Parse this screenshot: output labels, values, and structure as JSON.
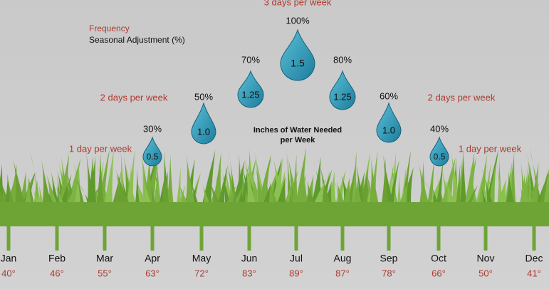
{
  "legend": {
    "frequency": "Frequency",
    "adjustment": "Seasonal Adjustment (%)"
  },
  "center_label": [
    "Inches of Water Needed",
    "per Week"
  ],
  "frequency_labels": [
    "3 days per week",
    "2 days per week",
    "2 days per week",
    "1 day per week",
    "1 day per week"
  ],
  "drops": [
    {
      "adjustment": "30%",
      "inches": "0.5"
    },
    {
      "adjustment": "50%",
      "inches": "1.0"
    },
    {
      "adjustment": "70%",
      "inches": "1.25"
    },
    {
      "adjustment": "100%",
      "inches": "1.5"
    },
    {
      "adjustment": "80%",
      "inches": "1.25"
    },
    {
      "adjustment": "60%",
      "inches": "1.0"
    },
    {
      "adjustment": "40%",
      "inches": "0.5"
    }
  ],
  "months": [
    {
      "name": "Jan",
      "temp": "40°"
    },
    {
      "name": "Feb",
      "temp": "46°"
    },
    {
      "name": "Mar",
      "temp": "55°"
    },
    {
      "name": "Apr",
      "temp": "63°"
    },
    {
      "name": "May",
      "temp": "72°"
    },
    {
      "name": "Jun",
      "temp": "83°"
    },
    {
      "name": "Jul",
      "temp": "89°"
    },
    {
      "name": "Aug",
      "temp": "87°"
    },
    {
      "name": "Sep",
      "temp": "78°"
    },
    {
      "name": "Oct",
      "temp": "66°"
    },
    {
      "name": "Nov",
      "temp": "50°"
    },
    {
      "name": "Dec",
      "temp": "41°"
    }
  ]
}
